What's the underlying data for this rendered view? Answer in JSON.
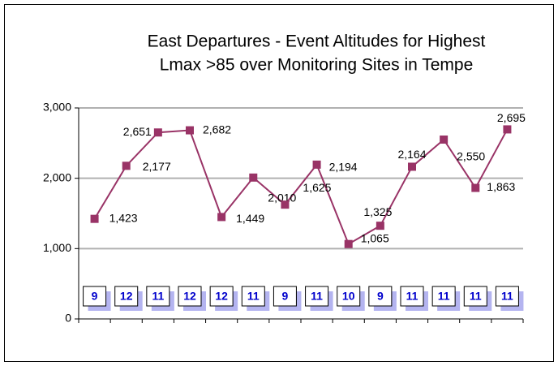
{
  "chart_data": {
    "type": "line",
    "title": [
      "East Departures -  Event Altitudes for Highest",
      "Lmax >85 over Monitoring Sites in Tempe"
    ],
    "categories": [
      null,
      null,
      null,
      null,
      null,
      null,
      null,
      null,
      null,
      null,
      null,
      null,
      null,
      null
    ],
    "series": [
      {
        "color": "#993366",
        "values": [
          1423,
          2177,
          2651,
          2682,
          1449,
          2010,
          1625,
          2194,
          1065,
          1325,
          2164,
          2550,
          1863,
          2695
        ],
        "value_labels": [
          "1,423",
          "2,177",
          "2,651",
          "2,682",
          "1,449",
          "2,010",
          "1,625",
          "2,194",
          "1,065",
          "1,325",
          "2,164",
          "2,550",
          "1,863",
          "2,695"
        ]
      }
    ],
    "annotations": [
      9,
      12,
      11,
      12,
      12,
      11,
      9,
      11,
      10,
      9,
      11,
      11,
      11,
      11
    ],
    "ylim": [
      0,
      3000
    ],
    "yticks": [
      0,
      {
        "value": 1000,
        "label": "1,000"
      },
      {
        "value": 2000,
        "label": "2,000"
      },
      {
        "value": 3000,
        "label": "3,000"
      }
    ],
    "grid": true
  }
}
